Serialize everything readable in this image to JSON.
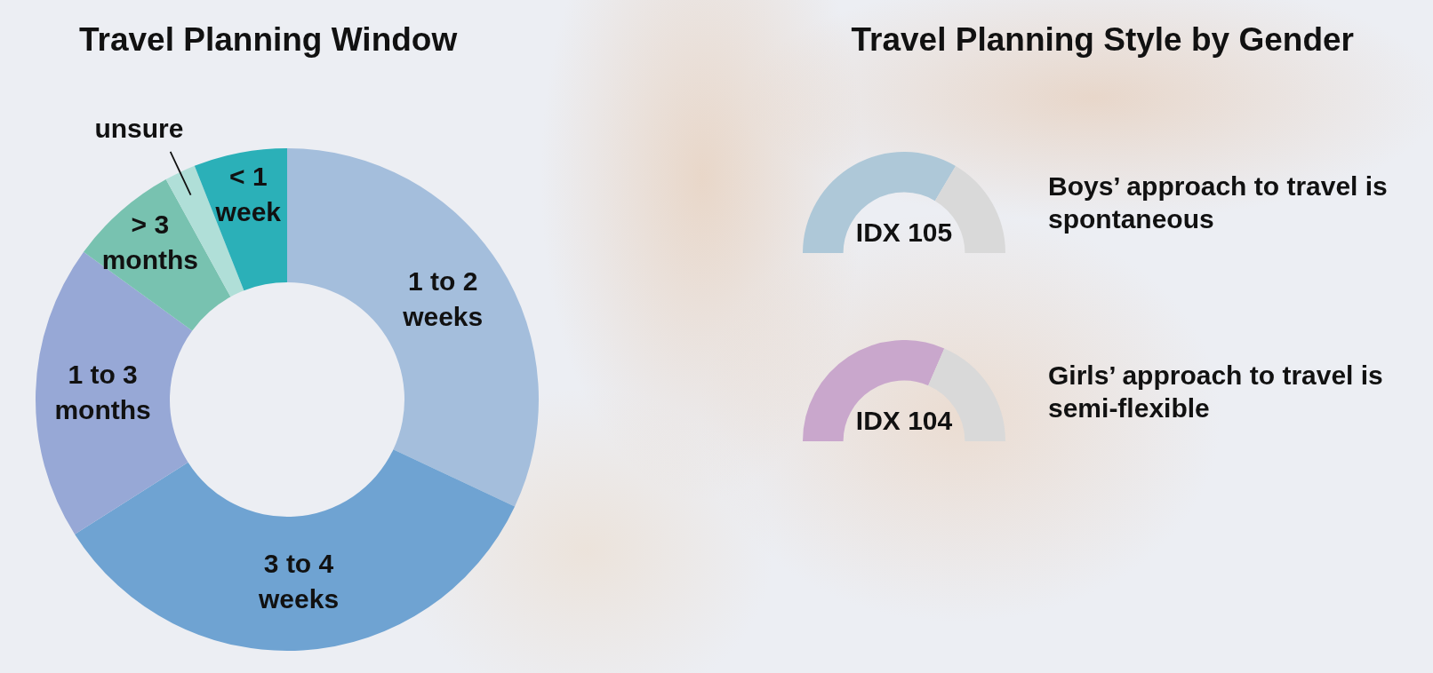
{
  "chart_data": [
    {
      "type": "donut",
      "title": "Travel Planning Window",
      "categories": [
        "1 to 2 weeks",
        "3 to 4 weeks",
        "1 to 3 months",
        "> 3 months",
        "unsure",
        "< 1 week"
      ],
      "values": [
        32,
        34,
        19,
        7,
        2,
        6
      ],
      "colors": [
        "#a4bedc",
        "#6fa3d2",
        "#97a8d6",
        "#78c2b0",
        "#b0dfd8",
        "#2bb0b8"
      ]
    },
    {
      "type": "donut",
      "title": "Travel Planning Style by Gender",
      "categories": [
        null,
        null
      ],
      "values": [
        67,
        33
      ],
      "colors": [
        "#aec8d8",
        "#d9d9d9"
      ],
      "annotations": [
        "IDX 105",
        "Boys’ approach to travel is spontaneous"
      ]
    },
    {
      "type": "donut",
      "categories": [
        null,
        null
      ],
      "values": [
        63,
        37
      ],
      "colors": [
        "#c9a7cc",
        "#d9d9d9"
      ],
      "annotations": [
        "IDX 104",
        "Girls’ approach to travel is semi-flexible"
      ]
    }
  ]
}
